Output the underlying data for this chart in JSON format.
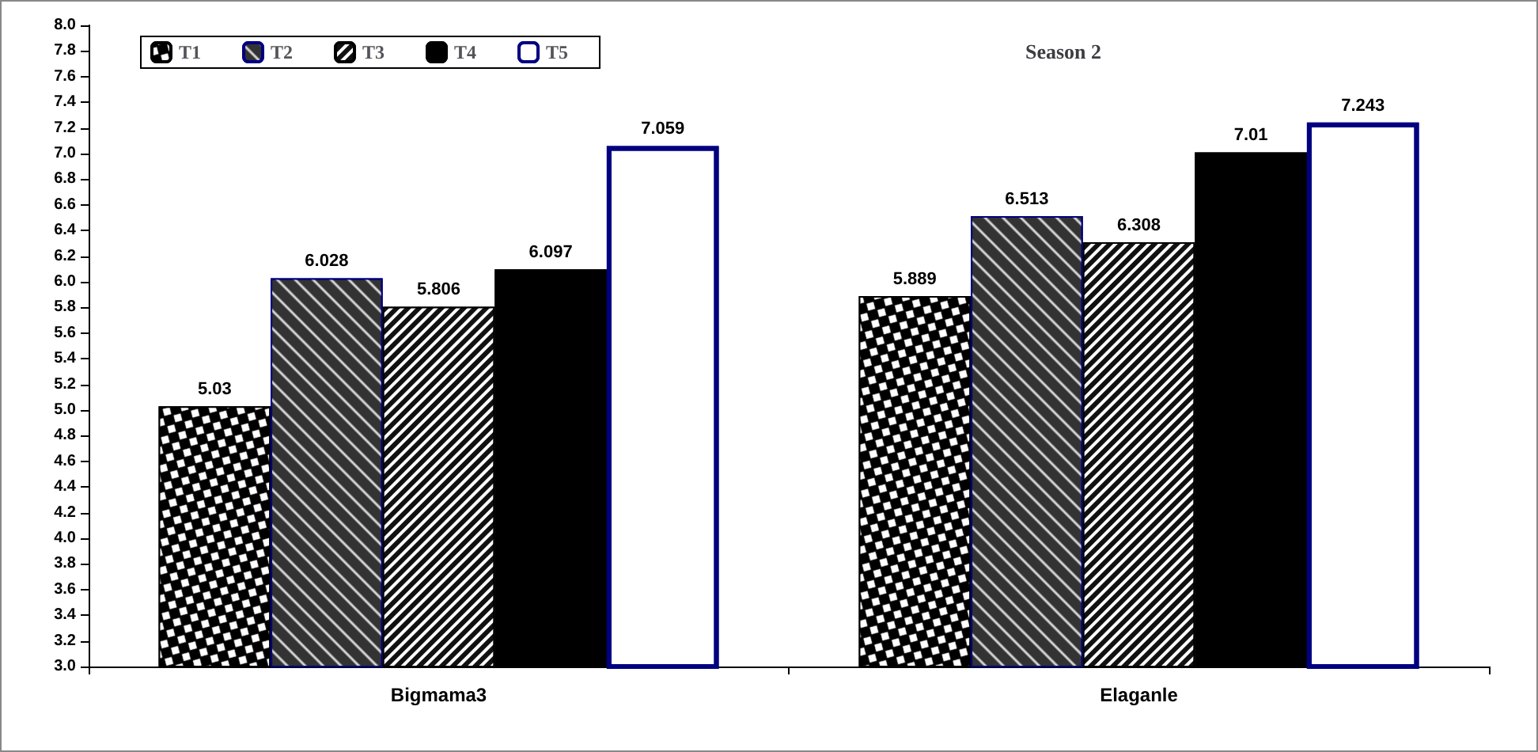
{
  "chart_data": {
    "type": "bar",
    "title": "Season 2",
    "categories": [
      "Bigmama3",
      "Elaganle"
    ],
    "series": [
      {
        "name": "T1",
        "color": "#000000",
        "values": [
          5.03,
          5.889
        ]
      },
      {
        "name": "T2",
        "color": "#333333",
        "values": [
          6.028,
          6.513
        ]
      },
      {
        "name": "T3",
        "color": "#111111",
        "values": [
          5.806,
          6.308
        ]
      },
      {
        "name": "T4",
        "color": "#000000",
        "values": [
          6.097,
          7.01
        ]
      },
      {
        "name": "T5",
        "color": "#000080",
        "values": [
          7.059,
          7.243
        ]
      }
    ],
    "ylim": [
      3.0,
      8.0
    ],
    "yticks": [
      {
        "value": 3.0,
        "label": "3.0"
      },
      {
        "value": 3.2,
        "label": "3.2"
      },
      {
        "value": 3.4,
        "label": "3.4"
      },
      {
        "value": 3.6,
        "label": "3.6"
      },
      {
        "value": 3.8,
        "label": "3.8"
      },
      {
        "value": 4.0,
        "label": "4.0"
      },
      {
        "value": 4.2,
        "label": "4.2"
      },
      {
        "value": 4.4,
        "label": "4.4"
      },
      {
        "value": 4.6,
        "label": "4.6"
      },
      {
        "value": 4.8,
        "label": "4.8"
      },
      {
        "value": 5.0,
        "label": "5.0"
      },
      {
        "value": 5.2,
        "label": "5.2"
      },
      {
        "value": 5.4,
        "label": "5.4"
      },
      {
        "value": 5.6,
        "label": "5.6"
      },
      {
        "value": 5.8,
        "label": "5.8"
      },
      {
        "value": 6.0,
        "label": "6.0"
      },
      {
        "value": 6.2,
        "label": "6.2"
      },
      {
        "value": 6.4,
        "label": "6.4"
      },
      {
        "value": 6.6,
        "label": "6.6"
      },
      {
        "value": 6.8,
        "label": "6.8"
      },
      {
        "value": 7.0,
        "label": "7.0"
      },
      {
        "value": 7.2,
        "label": "7.2"
      },
      {
        "value": 7.4,
        "label": "7.4"
      },
      {
        "value": 7.6,
        "label": "7.6"
      },
      {
        "value": 7.8,
        "label": "7.8"
      },
      {
        "value": 8.0,
        "label": "8.0"
      }
    ],
    "grid": false,
    "legend": "top left",
    "data_labels": true
  }
}
